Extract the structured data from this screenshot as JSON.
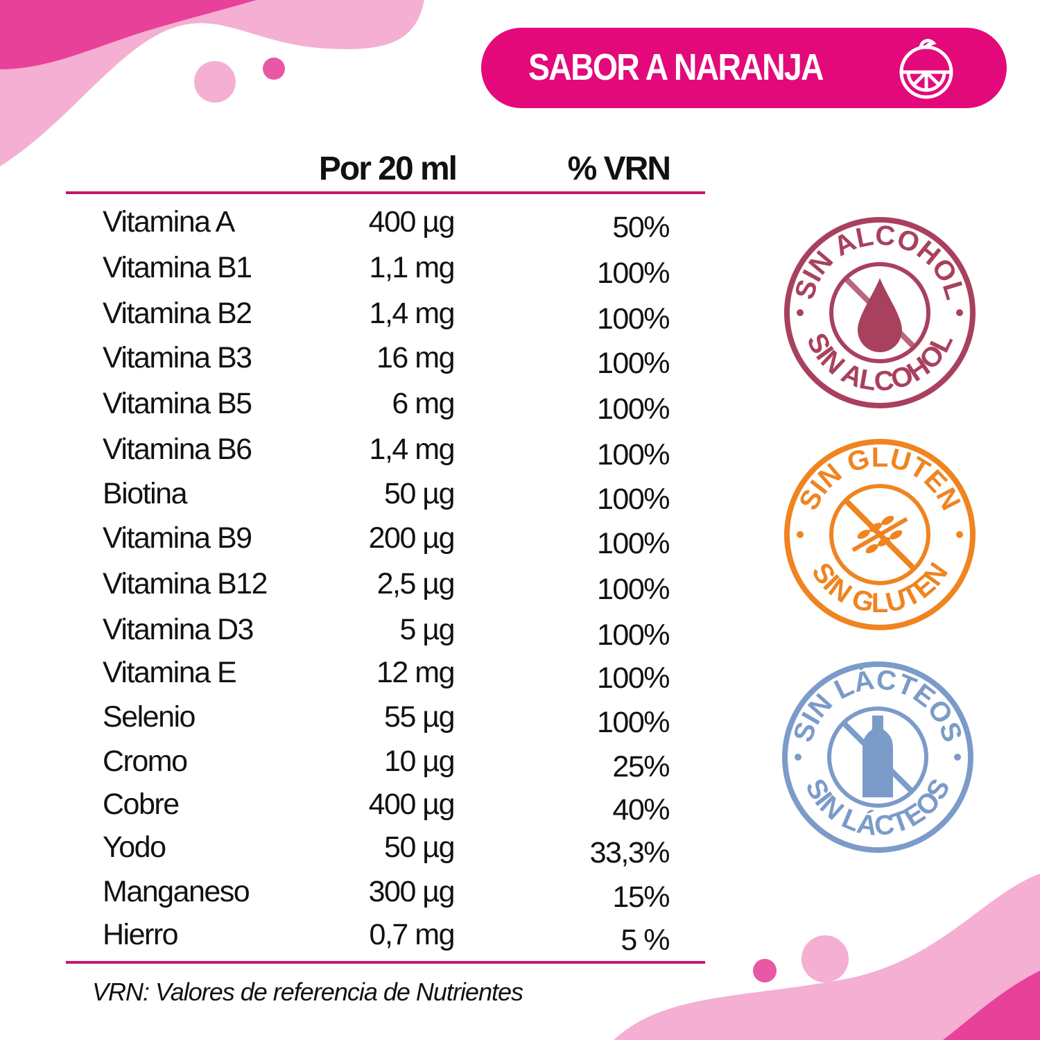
{
  "header": {
    "flavor": "SABOR A NARANJA",
    "flavor_icon": "orange-slice-icon",
    "col_amount": "Por 20 ml",
    "col_vrn": "% VRN"
  },
  "rows": [
    {
      "name": "Vitamina A",
      "amount": "400 µg",
      "vrn": "50%"
    },
    {
      "name": "Vitamina B1",
      "amount": "1,1 mg",
      "vrn": "100%"
    },
    {
      "name": "Vitamina B2",
      "amount": "1,4 mg",
      "vrn": "100%"
    },
    {
      "name": "Vitamina B3",
      "amount": "16 mg",
      "vrn": "100%"
    },
    {
      "name": "Vitamina B5",
      "amount": "6 mg",
      "vrn": "100%"
    },
    {
      "name": "Vitamina B6",
      "amount": "1,4 mg",
      "vrn": "100%"
    },
    {
      "name": "Biotina",
      "amount": "50 µg",
      "vrn": "100%"
    },
    {
      "name": "Vitamina B9",
      "amount": "200 µg",
      "vrn": "100%"
    },
    {
      "name": "Vitamina B12",
      "amount": "2,5 µg",
      "vrn": "100%"
    },
    {
      "name": "Vitamina D3",
      "amount": "5 µg",
      "vrn": "100%"
    },
    {
      "name": "Vitamina E",
      "amount": "12 mg",
      "vrn": "100%"
    },
    {
      "name": "Selenio",
      "amount": "55 µg",
      "vrn": "100%"
    },
    {
      "name": "Cromo",
      "amount": "10 µg",
      "vrn": "25%"
    },
    {
      "name": "Cobre",
      "amount": "400 µg",
      "vrn": "40%"
    },
    {
      "name": "Yodo",
      "amount": "50 µg",
      "vrn": "33,3%"
    },
    {
      "name": "Manganeso",
      "amount": "300 µg",
      "vrn": "15%"
    },
    {
      "name": "Hierro",
      "amount": "0,7 mg",
      "vrn": "5 %"
    }
  ],
  "footnote": "VRN: Valores de referencia de Nutrientes",
  "seals": [
    {
      "text": "SIN ALCOHOL",
      "icon": "drop-icon",
      "color": "#a8415e"
    },
    {
      "text": "SIN GLUTEN",
      "icon": "wheat-icon",
      "color": "#ef8420"
    },
    {
      "text": "SIN LÁCTEOS",
      "icon": "bottle-icon",
      "color": "#7b9bc9"
    }
  ],
  "colors": {
    "accent": "#e3097a",
    "blob_dark": "#e8419a",
    "blob_light": "#f4afd2"
  }
}
